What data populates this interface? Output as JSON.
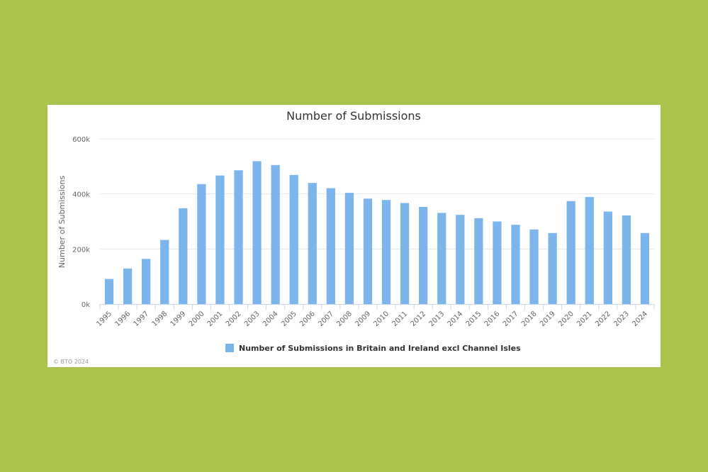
{
  "chart_data": {
    "type": "bar",
    "title": "Number of Submissions",
    "xlabel": "",
    "ylabel": "Number of Submissions",
    "ylim": [
      0,
      600000
    ],
    "yticks": [
      0,
      200000,
      400000,
      600000
    ],
    "ytick_labels": [
      "0k",
      "200k",
      "400k",
      "600k"
    ],
    "grid": true,
    "legend_position": "bottom-center",
    "categories": [
      "1995",
      "1996",
      "1997",
      "1998",
      "1999",
      "2000",
      "2001",
      "2002",
      "2003",
      "2004",
      "2005",
      "2006",
      "2007",
      "2008",
      "2009",
      "2010",
      "2011",
      "2012",
      "2013",
      "2014",
      "2015",
      "2016",
      "2017",
      "2018",
      "2019",
      "2020",
      "2021",
      "2022",
      "2023",
      "2024"
    ],
    "series": [
      {
        "name": "Number of Submissions in Britain and Ireland excl Channel Isles",
        "color": "#7cb5ec",
        "values": [
          91000,
          129000,
          164000,
          233000,
          348000,
          436000,
          467000,
          486000,
          519000,
          505000,
          469000,
          440000,
          421000,
          404000,
          383000,
          378000,
          367000,
          353000,
          331000,
          324000,
          312000,
          300000,
          288000,
          271000,
          258000,
          374000,
          389000,
          336000,
          322000,
          258000
        ]
      }
    ],
    "credit": "© BTO 2024"
  }
}
